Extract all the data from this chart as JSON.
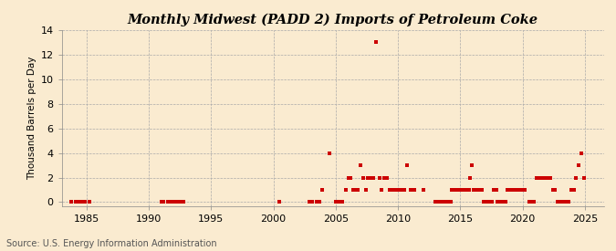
{
  "title": "Monthly Midwest (PADD 2) Imports of Petroleum Coke",
  "ylabel": "Thousand Barrels per Day",
  "source": "Source: U.S. Energy Information Administration",
  "background_color": "#faebd0",
  "marker_color": "#cc0000",
  "xlim": [
    1983.0,
    2026.5
  ],
  "ylim": [
    -0.3,
    14
  ],
  "yticks": [
    0,
    2,
    4,
    6,
    8,
    10,
    12,
    14
  ],
  "xticks": [
    1985,
    1990,
    1995,
    2000,
    2005,
    2010,
    2015,
    2020,
    2025
  ],
  "data_points": [
    [
      1983.75,
      0
    ],
    [
      1984.1,
      0
    ],
    [
      1984.4,
      0
    ],
    [
      1984.6,
      0
    ],
    [
      1984.9,
      0
    ],
    [
      1985.2,
      0
    ],
    [
      1991.0,
      0
    ],
    [
      1991.2,
      0
    ],
    [
      1991.5,
      0
    ],
    [
      1991.7,
      0
    ],
    [
      1992.0,
      0
    ],
    [
      1992.3,
      0
    ],
    [
      1992.5,
      0
    ],
    [
      1992.8,
      0
    ],
    [
      2000.5,
      0
    ],
    [
      2002.9,
      0
    ],
    [
      2003.1,
      0
    ],
    [
      2003.5,
      0
    ],
    [
      2003.7,
      0
    ],
    [
      2003.9,
      1
    ],
    [
      2004.5,
      4
    ],
    [
      2005.0,
      0
    ],
    [
      2005.3,
      0
    ],
    [
      2005.5,
      0
    ],
    [
      2005.8,
      1
    ],
    [
      2006.0,
      2
    ],
    [
      2006.2,
      2
    ],
    [
      2006.4,
      1
    ],
    [
      2006.6,
      1
    ],
    [
      2006.8,
      1
    ],
    [
      2007.0,
      3
    ],
    [
      2007.2,
      2
    ],
    [
      2007.4,
      1
    ],
    [
      2007.6,
      2
    ],
    [
      2007.8,
      2
    ],
    [
      2008.0,
      2
    ],
    [
      2008.2,
      13
    ],
    [
      2008.5,
      2
    ],
    [
      2008.7,
      1
    ],
    [
      2008.9,
      2
    ],
    [
      2009.1,
      2
    ],
    [
      2009.3,
      1
    ],
    [
      2009.5,
      1
    ],
    [
      2009.7,
      1
    ],
    [
      2009.9,
      1
    ],
    [
      2010.0,
      1
    ],
    [
      2010.2,
      1
    ],
    [
      2010.5,
      1
    ],
    [
      2010.7,
      3
    ],
    [
      2011.0,
      1
    ],
    [
      2011.3,
      1
    ],
    [
      2012.0,
      1
    ],
    [
      2013.0,
      0
    ],
    [
      2013.3,
      0
    ],
    [
      2013.5,
      0
    ],
    [
      2013.8,
      0
    ],
    [
      2014.0,
      0
    ],
    [
      2014.2,
      0
    ],
    [
      2014.3,
      1
    ],
    [
      2014.5,
      1
    ],
    [
      2014.7,
      1
    ],
    [
      2014.9,
      1
    ],
    [
      2015.0,
      1
    ],
    [
      2015.2,
      1
    ],
    [
      2015.4,
      1
    ],
    [
      2015.5,
      1
    ],
    [
      2015.7,
      1
    ],
    [
      2015.8,
      2
    ],
    [
      2015.9,
      3
    ],
    [
      2016.1,
      1
    ],
    [
      2016.3,
      1
    ],
    [
      2016.5,
      1
    ],
    [
      2016.7,
      1
    ],
    [
      2016.9,
      0
    ],
    [
      2017.1,
      0
    ],
    [
      2017.3,
      0
    ],
    [
      2017.5,
      0
    ],
    [
      2017.7,
      1
    ],
    [
      2017.9,
      1
    ],
    [
      2018.0,
      0
    ],
    [
      2018.2,
      0
    ],
    [
      2018.4,
      0
    ],
    [
      2018.6,
      0
    ],
    [
      2018.8,
      1
    ],
    [
      2019.0,
      1
    ],
    [
      2019.2,
      1
    ],
    [
      2019.4,
      1
    ],
    [
      2019.6,
      1
    ],
    [
      2019.8,
      1
    ],
    [
      2020.0,
      1
    ],
    [
      2020.2,
      1
    ],
    [
      2020.5,
      0
    ],
    [
      2020.7,
      0
    ],
    [
      2020.9,
      0
    ],
    [
      2021.1,
      2
    ],
    [
      2021.3,
      2
    ],
    [
      2021.5,
      2
    ],
    [
      2021.7,
      2
    ],
    [
      2021.9,
      2
    ],
    [
      2022.0,
      2
    ],
    [
      2022.2,
      2
    ],
    [
      2022.4,
      1
    ],
    [
      2022.6,
      1
    ],
    [
      2022.8,
      0
    ],
    [
      2023.0,
      0
    ],
    [
      2023.2,
      0
    ],
    [
      2023.4,
      0
    ],
    [
      2023.5,
      0
    ],
    [
      2023.7,
      0
    ],
    [
      2023.9,
      1
    ],
    [
      2024.1,
      1
    ],
    [
      2024.3,
      2
    ],
    [
      2024.5,
      3
    ],
    [
      2024.7,
      4
    ],
    [
      2024.9,
      2
    ]
  ]
}
